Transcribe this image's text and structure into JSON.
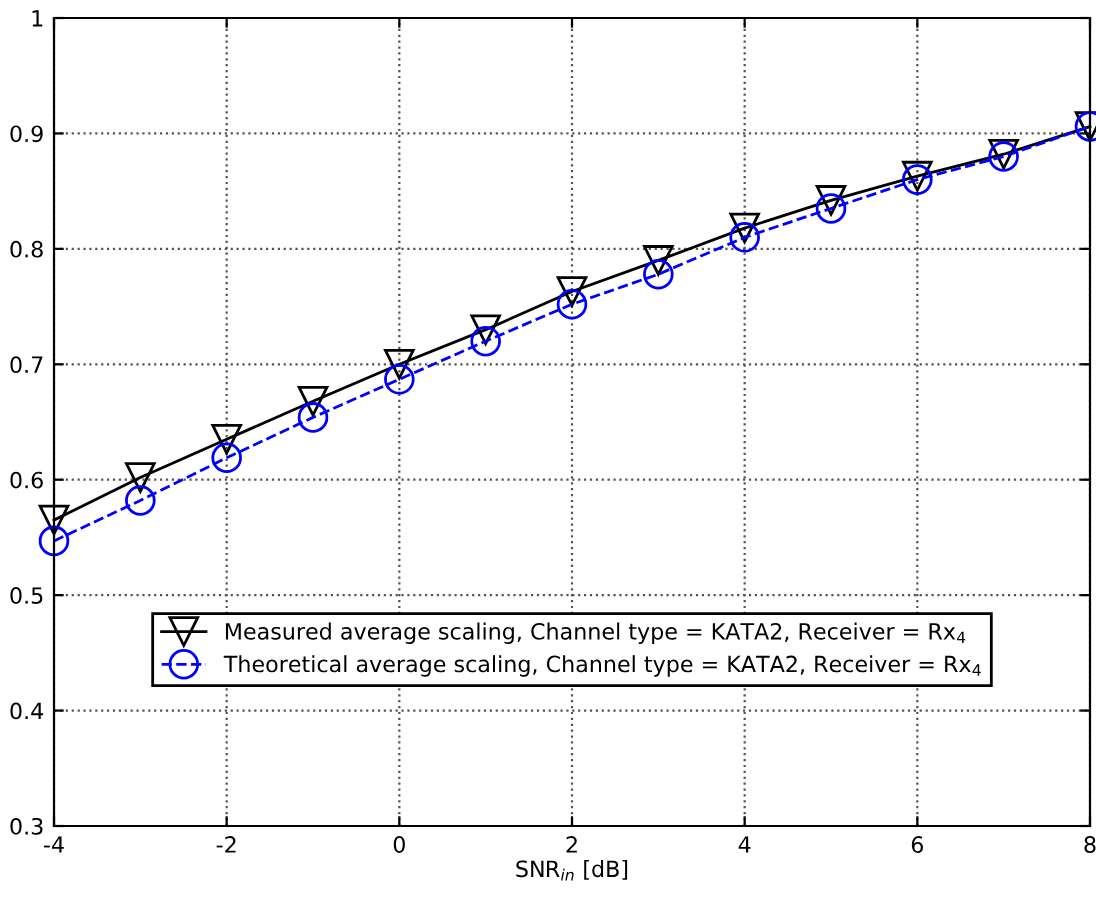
{
  "chart_data": {
    "type": "line",
    "xlabel": "SNR$_{in}$ [dB]",
    "x": [
      -4,
      -3,
      -2,
      -1,
      0,
      1,
      2,
      3,
      4,
      5,
      6,
      7,
      8
    ],
    "series": [
      {
        "name": "Measured average scaling, Channel type = KATA2, Receiver = Rx$_{4}$",
        "color": "#000000",
        "marker": "triangle",
        "line_style": "solid",
        "values": [
          0.565,
          0.602,
          0.635,
          0.668,
          0.7,
          0.73,
          0.763,
          0.79,
          0.818,
          0.842,
          0.863,
          0.882,
          0.906
        ]
      },
      {
        "name": "Theoretical average scaling, Channel type = KATA2, Receiver = Rx$_{4}$",
        "color": "#0000ff",
        "marker": "circle",
        "line_style": "dashed",
        "values": [
          0.547,
          0.582,
          0.619,
          0.654,
          0.687,
          0.72,
          0.752,
          0.778,
          0.81,
          0.835,
          0.86,
          0.88,
          0.906
        ]
      }
    ],
    "xlim": [
      -4,
      8
    ],
    "xticks": [
      -4,
      -2,
      0,
      2,
      4,
      6,
      8
    ],
    "ylim": [
      0.3,
      1
    ],
    "yticks": [
      0.3,
      0.4,
      0.5,
      0.6,
      0.7,
      0.8,
      0.9,
      1
    ],
    "grid": true,
    "legend": "lower center"
  }
}
